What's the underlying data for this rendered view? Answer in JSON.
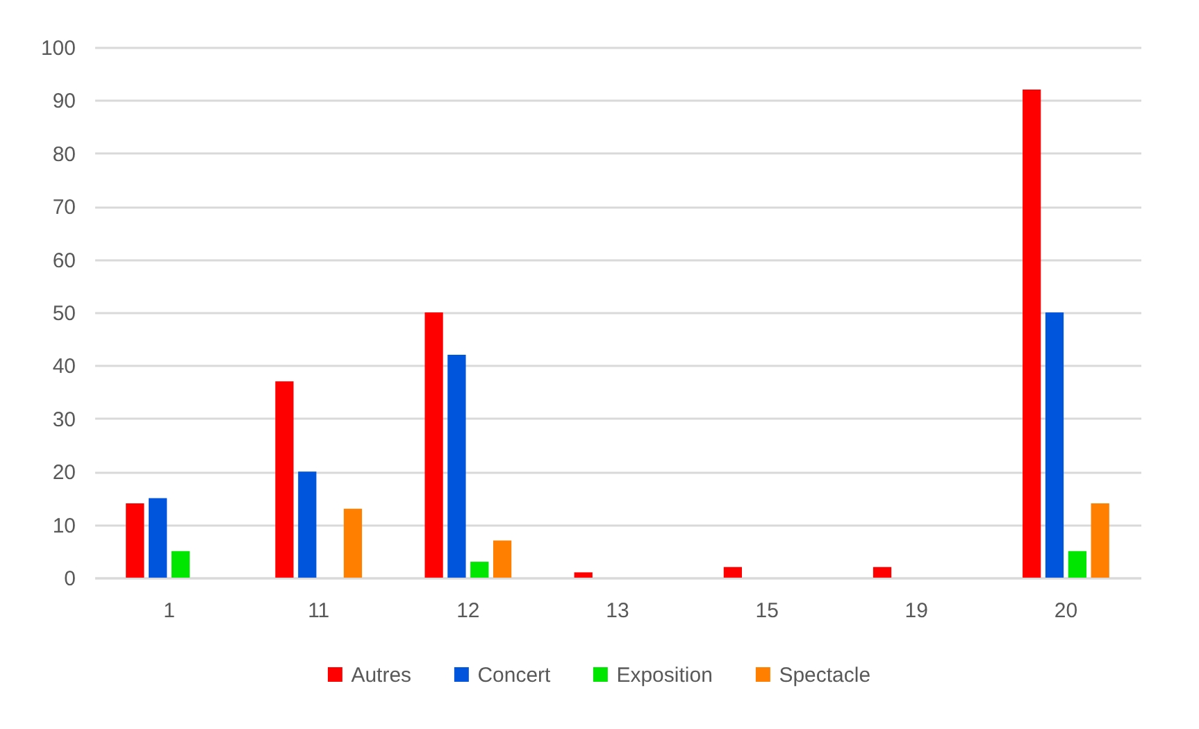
{
  "chart_data": {
    "type": "bar",
    "categories": [
      "1",
      "11",
      "12",
      "13",
      "15",
      "19",
      "20"
    ],
    "series": [
      {
        "name": "Autres",
        "color": "#ff0000",
        "values": [
          14,
          37,
          50,
          1,
          2,
          2,
          92
        ]
      },
      {
        "name": "Concert",
        "color": "#0055dd",
        "values": [
          15,
          20,
          42,
          null,
          null,
          null,
          50
        ]
      },
      {
        "name": "Exposition",
        "color": "#00e600",
        "values": [
          5,
          null,
          3,
          null,
          null,
          null,
          5
        ]
      },
      {
        "name": "Spectacle",
        "color": "#ff8000",
        "values": [
          null,
          13,
          7,
          null,
          null,
          null,
          14
        ]
      }
    ],
    "ylim": [
      0,
      100
    ],
    "yticks": [
      0,
      10,
      20,
      30,
      40,
      50,
      60,
      70,
      80,
      90,
      100
    ],
    "grid": "y",
    "legend": "bottom"
  }
}
